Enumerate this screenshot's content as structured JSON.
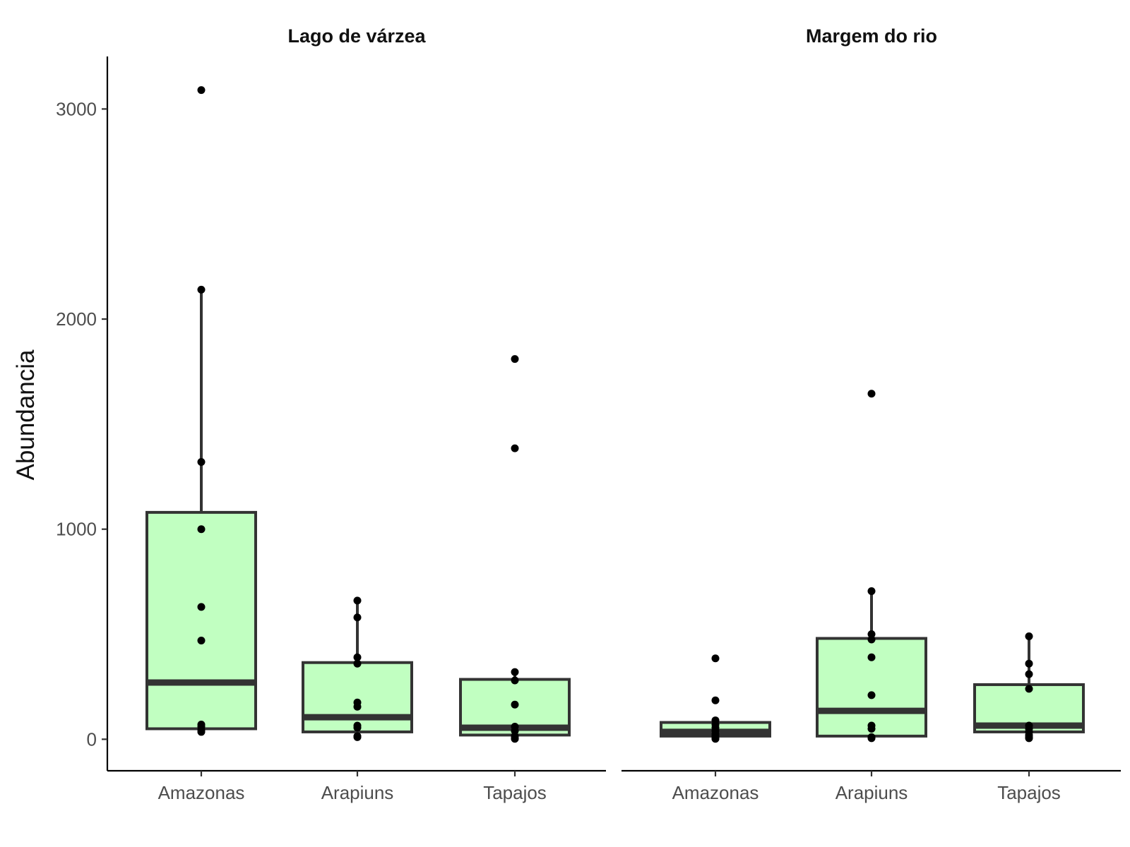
{
  "chart_data": {
    "type": "boxplot",
    "ylabel": "Abundancia",
    "xlabel": "",
    "ylim": [
      -150,
      3250
    ],
    "y_ticks": [
      0,
      1000,
      2000,
      3000
    ],
    "categories": [
      "Amazonas",
      "Arapiuns",
      "Tapajos"
    ],
    "box_fill": "#c1ffc1",
    "box_stroke": "#333333",
    "point_color": "#000000",
    "grid": false,
    "legend": "none",
    "panels": [
      {
        "title": "Lago de várzea",
        "groups": [
          {
            "category": "Amazonas",
            "q1": 50,
            "median": 270,
            "q3": 1080,
            "whisker_low": 30,
            "whisker_high": 2140,
            "points": [
              3090,
              2140,
              1320,
              1000,
              630,
              470,
              70,
              60,
              45,
              35
            ]
          },
          {
            "category": "Arapiuns",
            "q1": 35,
            "median": 105,
            "q3": 365,
            "whisker_low": 5,
            "whisker_high": 660,
            "points": [
              660,
              580,
              390,
              360,
              175,
              155,
              65,
              55,
              15,
              10
            ]
          },
          {
            "category": "Tapajos",
            "q1": 20,
            "median": 55,
            "q3": 285,
            "whisker_low": 0,
            "whisker_high": 320,
            "points": [
              1810,
              1385,
              320,
              280,
              165,
              60,
              40,
              15,
              5,
              2
            ]
          }
        ]
      },
      {
        "title": "Margem do rio",
        "groups": [
          {
            "category": "Amazonas",
            "q1": 15,
            "median": 35,
            "q3": 80,
            "whisker_low": 0,
            "whisker_high": 100,
            "points": [
              385,
              185,
              90,
              70,
              55,
              40,
              25,
              15,
              5,
              2
            ]
          },
          {
            "category": "Arapiuns",
            "q1": 15,
            "median": 135,
            "q3": 480,
            "whisker_low": 0,
            "whisker_high": 705,
            "points": [
              1645,
              705,
              500,
              475,
              390,
              210,
              65,
              50,
              10,
              5
            ]
          },
          {
            "category": "Tapajos",
            "q1": 35,
            "median": 65,
            "q3": 260,
            "whisker_low": 5,
            "whisker_high": 490,
            "points": [
              490,
              360,
              310,
              240,
              65,
              50,
              35,
              20,
              10,
              5
            ]
          }
        ]
      }
    ]
  }
}
